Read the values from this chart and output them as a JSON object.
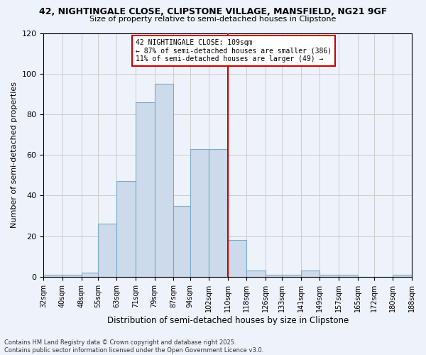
{
  "title_line1": "42, NIGHTINGALE CLOSE, CLIPSTONE VILLAGE, MANSFIELD, NG21 9GF",
  "title_line2": "Size of property relative to semi-detached houses in Clipstone",
  "xlabel": "Distribution of semi-detached houses by size in Clipstone",
  "ylabel": "Number of semi-detached properties",
  "footer_line1": "Contains HM Land Registry data © Crown copyright and database right 2025.",
  "footer_line2": "Contains public sector information licensed under the Open Government Licence v3.0.",
  "annotation_line1": "42 NIGHTINGALE CLOSE: 109sqm",
  "annotation_line2": "← 87% of semi-detached houses are smaller (386)",
  "annotation_line3": "11% of semi-detached houses are larger (49) →",
  "property_line_x": 110,
  "bins": [
    32,
    40,
    48,
    55,
    63,
    71,
    79,
    87,
    94,
    102,
    110,
    118,
    126,
    133,
    141,
    149,
    157,
    165,
    172,
    180,
    188
  ],
  "bin_labels": [
    "32sqm",
    "40sqm",
    "48sqm",
    "55sqm",
    "63sqm",
    "71sqm",
    "79sqm",
    "87sqm",
    "94sqm",
    "102sqm",
    "110sqm",
    "118sqm",
    "126sqm",
    "133sqm",
    "141sqm",
    "149sqm",
    "157sqm",
    "165sqm",
    "172sqm",
    "180sqm",
    "188sqm"
  ],
  "bar_heights": [
    1,
    1,
    2,
    26,
    47,
    86,
    95,
    35,
    63,
    63,
    18,
    3,
    1,
    1,
    3,
    1,
    1,
    0,
    0,
    1
  ],
  "bar_color": "#ccdaeb",
  "bar_edge_color": "#7aaac8",
  "ylim": [
    0,
    120
  ],
  "yticks": [
    0,
    20,
    40,
    60,
    80,
    100,
    120
  ],
  "grid_color": "#cccccc",
  "bg_color": "#eef2fa",
  "vline_color": "#cc0000",
  "annotation_box_edge": "#cc0000",
  "annotation_box_face": "#ffffff"
}
